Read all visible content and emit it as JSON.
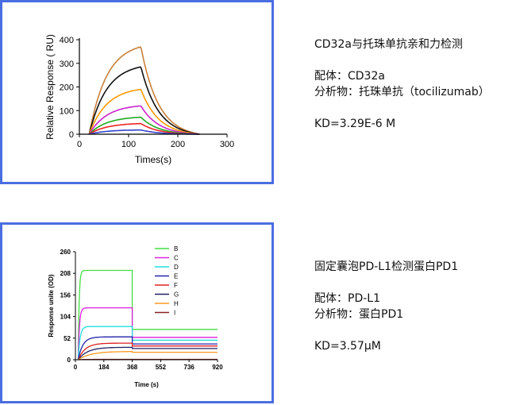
{
  "chart1_info": {
    "title": "CD32a与托珠单抗亲和力检测",
    "ligand": "配体：CD32a",
    "analyte": "分析物：托珠单抗（tocilizumab）",
    "kd": "KD=3.29E-6 M"
  },
  "chart2_info": {
    "title": "固定囊泡PD-L1检测蛋白PD1",
    "ligand": "配体：PD-L1",
    "analyte": "分析物：蛋白PD1",
    "kd": "KD=3.57μM"
  },
  "chart_data": [
    {
      "type": "line",
      "title": "",
      "xlabel": "Times(s)",
      "ylabel": "Relative Response ( RU)",
      "xlim": [
        0,
        300
      ],
      "ylim": [
        0,
        400
      ],
      "xticks": [
        0,
        100,
        200,
        300
      ],
      "yticks": [
        0,
        100,
        200,
        300,
        400
      ],
      "grid": false,
      "legend": "none",
      "kinetics": {
        "t_start": 20,
        "t_end_assoc": 125,
        "t_end": 245,
        "k_assoc": 0.028,
        "k_dissoc": 0.028
      },
      "series": [
        {
          "color": "#c8803a",
          "plateau": 370
        },
        {
          "color": "#111111",
          "plateau": 285
        },
        {
          "color": "#ff9900",
          "plateau": 190
        },
        {
          "color": "#cc22cc",
          "plateau": 120
        },
        {
          "color": "#22aa22",
          "plateau": 72
        },
        {
          "color": "#ee2222",
          "plateau": 45
        },
        {
          "color": "#3344cc",
          "plateau": 18
        }
      ]
    },
    {
      "type": "line",
      "title": "",
      "xlabel": "Time (s)",
      "ylabel": "Response unite (OD)",
      "xlim": [
        0,
        920
      ],
      "ylim": [
        0,
        260
      ],
      "xticks": [
        0,
        184,
        368,
        552,
        736,
        920
      ],
      "yticks": [
        0,
        52,
        104,
        156,
        208,
        260
      ],
      "grid": false,
      "legend": "right",
      "kinetics": {
        "t_start": 18,
        "t_end_assoc": 368,
        "t_end": 920
      },
      "series": [
        {
          "name": "B",
          "color": "#44dd44",
          "plateau": 215,
          "after": 73,
          "tau": 6
        },
        {
          "name": "C",
          "color": "#dd22dd",
          "plateau": 125,
          "after": 54,
          "tau": 8
        },
        {
          "name": "D",
          "color": "#22dddd",
          "plateau": 80,
          "after": 47,
          "tau": 12
        },
        {
          "name": "E",
          "color": "#2222aa",
          "plateau": 55,
          "after": 38,
          "tau": 30
        },
        {
          "name": "F",
          "color": "#dd2222",
          "plateau": 40,
          "after": 33,
          "tau": 45
        },
        {
          "name": "G",
          "color": "#222266",
          "plateau": 30,
          "after": 27,
          "tau": 60
        },
        {
          "name": "H",
          "color": "#ff9922",
          "plateau": 20,
          "after": 18,
          "tau": 80
        },
        {
          "name": "I",
          "color": "#882222",
          "plateau": 1,
          "after": 1,
          "tau": 50
        }
      ]
    }
  ]
}
